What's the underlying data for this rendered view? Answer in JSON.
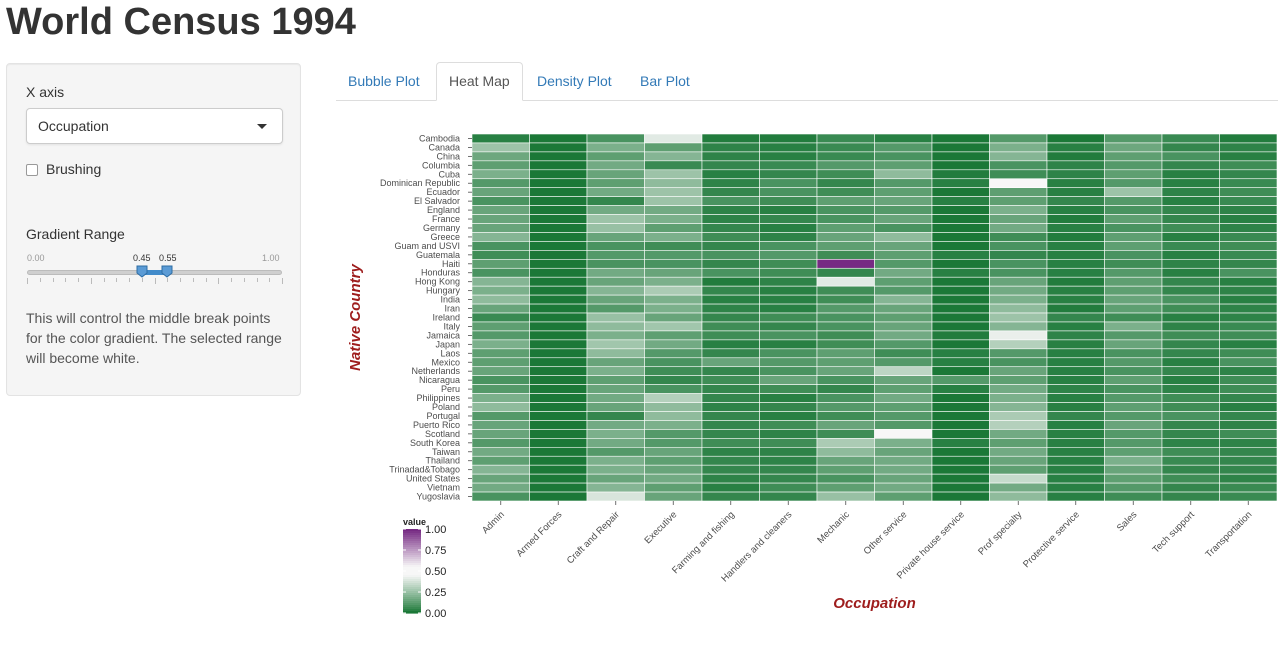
{
  "app_title": "World Census 1994",
  "sidebar": {
    "x_axis_label": "X axis",
    "x_axis_value": "Occupation",
    "brushing_label": "Brushing",
    "brushing_checked": false,
    "gradient_label": "Gradient Range",
    "slider": {
      "min": "0.00",
      "max": "1.00",
      "low": "0.45",
      "high": "0.55"
    },
    "help_text": "This will control the middle break points for the color gradient. The selected range will become white."
  },
  "tabs": [
    {
      "label": "Bubble Plot",
      "active": false
    },
    {
      "label": "Heat Map",
      "active": true
    },
    {
      "label": "Density Plot",
      "active": false
    },
    {
      "label": "Bar Plot",
      "active": false
    }
  ],
  "colors": {
    "low": "#1b7837",
    "mid": "#f7f7f7",
    "high": "#762a83",
    "axis_title": "#9e1d1d"
  },
  "chart_data": {
    "type": "heatmap",
    "xlabel": "Occupation",
    "ylabel": "Native Country",
    "legend_title": "value",
    "legend_ticks": [
      "1.00",
      "0.75",
      "0.50",
      "0.25",
      "0.00"
    ],
    "x": [
      "Admin",
      "Armed Forces",
      "Craft and Repair",
      "Executive",
      "Farming and fishing",
      "Handlers and cleaners",
      "Mechanic",
      "Other service",
      "Private house service",
      "Prof specialty",
      "Protective service",
      "Sales",
      "Tech support",
      "Transportation"
    ],
    "y": [
      "Cambodia",
      "Canada",
      "China",
      "Columbia",
      "Cuba",
      "Dominican Republic",
      "Ecuador",
      "El Salvador",
      "England",
      "France",
      "Germany",
      "Greece",
      "Guam and USVI",
      "Guatemala",
      "Haiti",
      "Honduras",
      "Hong Kong",
      "Hungary",
      "India",
      "Iran",
      "Ireland",
      "Italy",
      "Jamaica",
      "Japan",
      "Laos",
      "Mexico",
      "Netherlands",
      "Nicaragua",
      "Peru",
      "Philippines",
      "Poland",
      "Portugal",
      "Puerto Rico",
      "Scotland",
      "South Korea",
      "Taiwan",
      "Thailand",
      "Trinadad&Tobago",
      "United States",
      "Vietnam",
      "Yugoslavia"
    ],
    "values": [
      [
        0.02,
        0.0,
        0.08,
        0.4,
        0.01,
        0.01,
        0.05,
        0.02,
        0.0,
        0.1,
        0.0,
        0.1,
        0.05,
        0.01
      ],
      [
        0.25,
        0.0,
        0.18,
        0.12,
        0.03,
        0.02,
        0.05,
        0.1,
        0.0,
        0.18,
        0.02,
        0.15,
        0.04,
        0.03
      ],
      [
        0.15,
        0.0,
        0.12,
        0.2,
        0.03,
        0.02,
        0.05,
        0.08,
        0.0,
        0.2,
        0.01,
        0.12,
        0.08,
        0.02
      ],
      [
        0.12,
        0.0,
        0.16,
        0.05,
        0.04,
        0.05,
        0.1,
        0.12,
        0.0,
        0.08,
        0.03,
        0.1,
        0.04,
        0.06
      ],
      [
        0.18,
        0.0,
        0.14,
        0.25,
        0.02,
        0.04,
        0.06,
        0.22,
        0.01,
        0.06,
        0.03,
        0.12,
        0.02,
        0.04
      ],
      [
        0.1,
        0.0,
        0.12,
        0.22,
        0.03,
        0.08,
        0.04,
        0.1,
        0.02,
        0.48,
        0.02,
        0.1,
        0.02,
        0.05
      ],
      [
        0.14,
        0.0,
        0.16,
        0.25,
        0.04,
        0.08,
        0.06,
        0.12,
        0.0,
        0.12,
        0.02,
        0.25,
        0.03,
        0.06
      ],
      [
        0.08,
        0.0,
        0.04,
        0.25,
        0.08,
        0.06,
        0.12,
        0.14,
        0.02,
        0.12,
        0.04,
        0.1,
        0.02,
        0.05
      ],
      [
        0.14,
        0.0,
        0.16,
        0.16,
        0.03,
        0.02,
        0.08,
        0.1,
        0.0,
        0.18,
        0.02,
        0.08,
        0.04,
        0.03
      ],
      [
        0.14,
        0.0,
        0.25,
        0.18,
        0.03,
        0.04,
        0.08,
        0.14,
        0.0,
        0.14,
        0.01,
        0.12,
        0.04,
        0.02
      ],
      [
        0.14,
        0.0,
        0.24,
        0.12,
        0.04,
        0.02,
        0.12,
        0.08,
        0.0,
        0.16,
        0.02,
        0.08,
        0.06,
        0.03
      ],
      [
        0.2,
        0.0,
        0.14,
        0.18,
        0.06,
        0.03,
        0.14,
        0.22,
        0.0,
        0.06,
        0.01,
        0.12,
        0.02,
        0.05
      ],
      [
        0.08,
        0.0,
        0.08,
        0.06,
        0.04,
        0.08,
        0.12,
        0.14,
        0.0,
        0.08,
        0.02,
        0.12,
        0.05,
        0.06
      ],
      [
        0.06,
        0.0,
        0.1,
        0.1,
        0.08,
        0.1,
        0.06,
        0.12,
        0.02,
        0.04,
        0.02,
        0.08,
        0.02,
        0.05
      ],
      [
        0.12,
        0.0,
        0.08,
        0.08,
        0.04,
        0.06,
        1.0,
        0.1,
        0.0,
        0.08,
        0.02,
        0.06,
        0.03,
        0.04
      ],
      [
        0.08,
        0.0,
        0.16,
        0.14,
        0.08,
        0.06,
        0.04,
        0.16,
        0.02,
        0.08,
        0.02,
        0.1,
        0.02,
        0.08
      ],
      [
        0.2,
        0.0,
        0.14,
        0.18,
        0.01,
        0.03,
        0.4,
        0.12,
        0.0,
        0.14,
        0.01,
        0.12,
        0.04,
        0.02
      ],
      [
        0.18,
        0.0,
        0.2,
        0.28,
        0.04,
        0.02,
        0.06,
        0.1,
        0.0,
        0.16,
        0.02,
        0.12,
        0.04,
        0.03
      ],
      [
        0.22,
        0.0,
        0.14,
        0.18,
        0.02,
        0.02,
        0.06,
        0.2,
        0.0,
        0.18,
        0.02,
        0.14,
        0.08,
        0.02
      ],
      [
        0.14,
        0.0,
        0.1,
        0.18,
        0.03,
        0.02,
        0.1,
        0.14,
        0.0,
        0.22,
        0.01,
        0.12,
        0.06,
        0.03
      ],
      [
        0.05,
        0.0,
        0.24,
        0.14,
        0.04,
        0.06,
        0.08,
        0.12,
        0.0,
        0.25,
        0.04,
        0.06,
        0.02,
        0.03
      ],
      [
        0.12,
        0.0,
        0.22,
        0.26,
        0.06,
        0.04,
        0.08,
        0.14,
        0.0,
        0.2,
        0.02,
        0.18,
        0.03,
        0.05
      ],
      [
        0.1,
        0.0,
        0.18,
        0.12,
        0.06,
        0.08,
        0.06,
        0.16,
        0.01,
        0.42,
        0.03,
        0.1,
        0.06,
        0.06
      ],
      [
        0.18,
        0.0,
        0.26,
        0.16,
        0.02,
        0.02,
        0.06,
        0.1,
        0.0,
        0.3,
        0.02,
        0.14,
        0.04,
        0.02
      ],
      [
        0.12,
        0.0,
        0.22,
        0.1,
        0.04,
        0.08,
        0.12,
        0.06,
        0.02,
        0.1,
        0.02,
        0.08,
        0.04,
        0.06
      ],
      [
        0.12,
        0.0,
        0.14,
        0.08,
        0.14,
        0.1,
        0.12,
        0.1,
        0.02,
        0.08,
        0.02,
        0.1,
        0.02,
        0.08
      ],
      [
        0.14,
        0.0,
        0.18,
        0.06,
        0.04,
        0.08,
        0.14,
        0.32,
        0.0,
        0.14,
        0.02,
        0.08,
        0.04,
        0.03
      ],
      [
        0.08,
        0.0,
        0.12,
        0.04,
        0.06,
        0.14,
        0.08,
        0.14,
        0.1,
        0.12,
        0.02,
        0.12,
        0.02,
        0.06
      ],
      [
        0.1,
        0.0,
        0.14,
        0.08,
        0.04,
        0.06,
        0.04,
        0.12,
        0.02,
        0.16,
        0.03,
        0.08,
        0.03,
        0.06
      ],
      [
        0.18,
        0.0,
        0.16,
        0.3,
        0.04,
        0.02,
        0.08,
        0.16,
        0.0,
        0.18,
        0.02,
        0.1,
        0.06,
        0.04
      ],
      [
        0.22,
        0.0,
        0.14,
        0.22,
        0.03,
        0.04,
        0.1,
        0.12,
        0.0,
        0.2,
        0.02,
        0.12,
        0.06,
        0.02
      ],
      [
        0.1,
        0.0,
        0.04,
        0.22,
        0.04,
        0.02,
        0.06,
        0.1,
        0.0,
        0.28,
        0.04,
        0.1,
        0.08,
        0.04
      ],
      [
        0.14,
        0.0,
        0.16,
        0.18,
        0.04,
        0.06,
        0.14,
        0.1,
        0.0,
        0.3,
        0.02,
        0.14,
        0.04,
        0.03
      ],
      [
        0.14,
        0.0,
        0.18,
        0.1,
        0.04,
        0.03,
        0.06,
        0.46,
        0.0,
        0.16,
        0.02,
        0.1,
        0.04,
        0.06
      ],
      [
        0.1,
        0.0,
        0.16,
        0.1,
        0.06,
        0.06,
        0.28,
        0.18,
        0.02,
        0.12,
        0.02,
        0.1,
        0.03,
        0.03
      ],
      [
        0.16,
        0.0,
        0.1,
        0.14,
        0.03,
        0.03,
        0.22,
        0.14,
        0.0,
        0.16,
        0.02,
        0.12,
        0.06,
        0.04
      ],
      [
        0.12,
        0.0,
        0.18,
        0.12,
        0.04,
        0.03,
        0.14,
        0.16,
        0.0,
        0.14,
        0.02,
        0.18,
        0.05,
        0.04
      ],
      [
        0.2,
        0.0,
        0.18,
        0.14,
        0.04,
        0.04,
        0.12,
        0.16,
        0.0,
        0.12,
        0.02,
        0.14,
        0.04,
        0.04
      ],
      [
        0.14,
        0.0,
        0.14,
        0.16,
        0.03,
        0.04,
        0.08,
        0.14,
        0.0,
        0.34,
        0.02,
        0.12,
        0.06,
        0.03
      ],
      [
        0.16,
        0.0,
        0.2,
        0.12,
        0.02,
        0.06,
        0.12,
        0.16,
        0.0,
        0.16,
        0.02,
        0.1,
        0.04,
        0.05
      ],
      [
        0.08,
        0.0,
        0.38,
        0.14,
        0.04,
        0.04,
        0.24,
        0.12,
        0.0,
        0.22,
        0.02,
        0.06,
        0.04,
        0.05
      ]
    ]
  }
}
